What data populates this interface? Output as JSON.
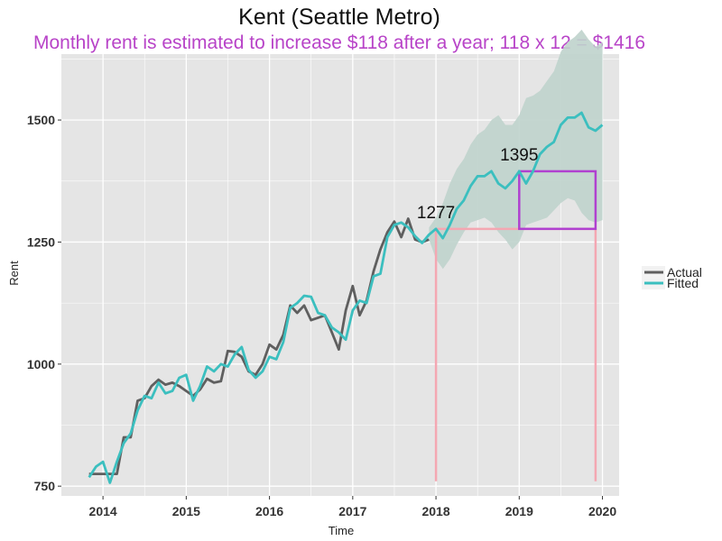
{
  "chart_data": {
    "type": "line",
    "title": "Kent (Seattle Metro)",
    "subtitle": "Monthly rent is estimated to increase $118 after a year; 118 x 12 = $1416",
    "xlabel": "Time",
    "ylabel": "Rent",
    "x_start": 2013.833,
    "x_step": 0.08333,
    "xlim": [
      2013.5,
      2020.2
    ],
    "ylim": [
      730,
      1635
    ],
    "x_ticks": [
      2014,
      2015,
      2016,
      2017,
      2018,
      2019,
      2020
    ],
    "x_tick_labels": [
      "2014",
      "2015",
      "2016",
      "2017",
      "2018",
      "2019",
      "2020"
    ],
    "y_ticks": [
      750,
      1000,
      1250,
      1500
    ],
    "y_tick_labels": [
      "750",
      "1000",
      "1250",
      "1500"
    ],
    "series": [
      {
        "name": "Actual",
        "color": "#5f5f5f",
        "values": [
          775,
          775,
          775,
          775,
          775,
          850,
          850,
          925,
          930,
          955,
          968,
          958,
          962,
          955,
          945,
          935,
          948,
          970,
          962,
          965,
          1027,
          1025,
          1015,
          985,
          978,
          1000,
          1040,
          1030,
          1060,
          1120,
          1105,
          1120,
          1090,
          1095,
          1100,
          1065,
          1030,
          1110,
          1160,
          1100,
          1130,
          1190,
          1235,
          1270,
          1292,
          1260,
          1298,
          1255,
          1250,
          1255
        ]
      },
      {
        "name": "Fitted",
        "color": "#3bbfbf",
        "values": [
          768,
          790,
          800,
          757,
          800,
          838,
          858,
          905,
          935,
          930,
          962,
          940,
          945,
          972,
          978,
          925,
          955,
          995,
          985,
          1000,
          995,
          1020,
          1035,
          988,
          972,
          985,
          1015,
          1010,
          1045,
          1115,
          1125,
          1140,
          1138,
          1105,
          1100,
          1075,
          1065,
          1050,
          1110,
          1130,
          1125,
          1180,
          1185,
          1260,
          1285,
          1290,
          1280,
          1262,
          1248,
          1265,
          1277,
          1258,
          1285,
          1318,
          1335,
          1365,
          1385,
          1385,
          1395,
          1370,
          1360,
          1375,
          1395,
          1370,
          1395,
          1430,
          1445,
          1455,
          1490,
          1505,
          1505,
          1515,
          1485,
          1478,
          1490
        ]
      }
    ],
    "confidence_band": {
      "x_start": 2017.917,
      "upper": [
        1280,
        1300,
        1330,
        1370,
        1400,
        1420,
        1450,
        1470,
        1480,
        1500,
        1510,
        1490,
        1490,
        1510,
        1545,
        1550,
        1560,
        1580,
        1600,
        1640,
        1660,
        1670,
        1685,
        1665,
        1650,
        1660
      ],
      "lower": [
        1255,
        1215,
        1195,
        1215,
        1245,
        1270,
        1290,
        1295,
        1300,
        1290,
        1270,
        1255,
        1235,
        1250,
        1285,
        1290,
        1295,
        1300,
        1315,
        1330,
        1340,
        1335,
        1310,
        1295,
        1290,
        1295
      ]
    },
    "reference_lines": {
      "color": "#f4a7b2",
      "vertical_x": [
        2018.0,
        2019.917
      ],
      "horizontal_y": 1277,
      "bottom_y": 760
    },
    "highlight_box": {
      "color": "#b040d0",
      "x_range": [
        2019.0,
        2019.917
      ],
      "y_range": [
        1277,
        1395
      ]
    },
    "annotations": [
      {
        "text": "1277",
        "x": 2018.0,
        "y": 1277
      },
      {
        "text": "1395",
        "x": 2019.0,
        "y": 1395
      }
    ],
    "legend": {
      "position": "right",
      "entries": [
        "Actual",
        "Fitted"
      ]
    }
  },
  "colors": {
    "panel_bg": "#e5e5e5",
    "grid": "#ffffff",
    "subtitle": "#b844c8",
    "band": "#bfd3cc"
  }
}
